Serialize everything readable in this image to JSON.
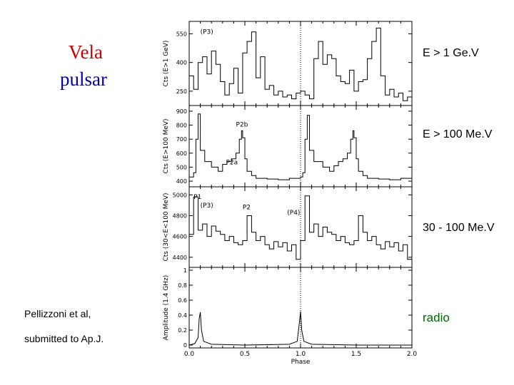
{
  "slide": {
    "title_line1": "Vela",
    "title_line2": "pulsar",
    "bands": {
      "p1": "E > 1 Ge.V",
      "p2": "E > 100 Me.V",
      "p3": "30 - 100 Me.V",
      "p4": "radio"
    },
    "citation_line1": "Pellizzoni et al,",
    "citation_line2": "submitted to Ap.J.",
    "colors": {
      "title_red": "#cc0000",
      "title_blue": "#0000aa",
      "radio_green": "#006600"
    }
  },
  "chart_data": [
    {
      "type": "line",
      "ylabel": "Cts (E>1 GeV)",
      "yticks": [
        250,
        400,
        550
      ],
      "ylim": [
        190,
        600
      ],
      "xlim": [
        0,
        2
      ],
      "annotations": [
        {
          "text": "(P3)",
          "x": 0.1,
          "y": 550
        }
      ],
      "series": [
        {
          "x": [
            0,
            0.04,
            0.08,
            0.12,
            0.16,
            0.2,
            0.24,
            0.28,
            0.32,
            0.36,
            0.4,
            0.44,
            0.48,
            0.52,
            0.56,
            0.6,
            0.64,
            0.68,
            0.72,
            0.76,
            0.8,
            0.84,
            0.88,
            0.92,
            0.96,
            1.0,
            1.04,
            1.08,
            1.12,
            1.16,
            1.2,
            1.24,
            1.28,
            1.32,
            1.36,
            1.4,
            1.44,
            1.48,
            1.52,
            1.56,
            1.6,
            1.64,
            1.68,
            1.72,
            1.76,
            1.8,
            1.84,
            1.88,
            1.92,
            1.96
          ],
          "values": [
            330,
            260,
            400,
            430,
            340,
            460,
            390,
            300,
            230,
            290,
            370,
            240,
            450,
            510,
            560,
            320,
            430,
            260,
            280,
            230,
            250,
            220,
            230,
            210,
            240,
            250,
            230,
            210,
            420,
            510,
            390,
            440,
            420,
            330,
            300,
            290,
            360,
            250,
            300,
            310,
            420,
            510,
            580,
            330,
            230,
            260,
            220,
            240,
            200,
            220
          ]
        }
      ]
    },
    {
      "type": "line",
      "ylabel": "Cts (E>100 MeV)",
      "yticks": [
        400,
        500,
        600,
        700,
        800,
        900
      ],
      "ylim": [
        380,
        920
      ],
      "xlim": [
        0,
        2
      ],
      "annotations": [
        {
          "text": "P2b",
          "x": 0.42,
          "y": 790
        },
        {
          "text": "P2a",
          "x": 0.33,
          "y": 520
        }
      ],
      "series": [
        {
          "x": [
            0,
            0.04,
            0.06,
            0.08,
            0.1,
            0.14,
            0.2,
            0.26,
            0.3,
            0.34,
            0.38,
            0.42,
            0.45,
            0.47,
            0.48,
            0.5,
            0.52,
            0.56,
            0.6,
            0.7,
            0.8,
            0.9,
            1.0,
            1.02,
            1.04,
            1.06,
            1.08,
            1.12,
            1.2,
            1.26,
            1.3,
            1.34,
            1.38,
            1.42,
            1.45,
            1.47,
            1.48,
            1.5,
            1.52,
            1.56,
            1.6,
            1.7,
            1.8,
            1.9,
            2.0
          ],
          "values": [
            430,
            460,
            700,
            880,
            620,
            540,
            500,
            470,
            520,
            540,
            560,
            600,
            700,
            760,
            710,
            560,
            470,
            440,
            420,
            415,
            410,
            420,
            430,
            460,
            700,
            870,
            620,
            540,
            500,
            470,
            510,
            540,
            560,
            600,
            700,
            760,
            710,
            560,
            470,
            440,
            420,
            415,
            410,
            420,
            420
          ]
        }
      ]
    },
    {
      "type": "line",
      "ylabel": "Cts (30<E<100 MeV)",
      "yticks": [
        4400,
        4600,
        4800,
        5000
      ],
      "ylim": [
        4330,
        5050
      ],
      "xlim": [
        0,
        2
      ],
      "annotations": [
        {
          "text": "P1",
          "x": 0.04,
          "y": 4960
        },
        {
          "text": "(P3)",
          "x": 0.1,
          "y": 4880
        },
        {
          "text": "P2",
          "x": 0.48,
          "y": 4860
        },
        {
          "text": "(P4)",
          "x": 0.88,
          "y": 4810
        }
      ],
      "series": [
        {
          "x": [
            0,
            0.04,
            0.08,
            0.12,
            0.16,
            0.2,
            0.24,
            0.28,
            0.32,
            0.36,
            0.4,
            0.44,
            0.48,
            0.52,
            0.56,
            0.6,
            0.64,
            0.68,
            0.72,
            0.76,
            0.8,
            0.84,
            0.88,
            0.92,
            0.96,
            1.0,
            1.04,
            1.08,
            1.12,
            1.16,
            1.2,
            1.24,
            1.28,
            1.32,
            1.36,
            1.4,
            1.44,
            1.48,
            1.52,
            1.56,
            1.6,
            1.64,
            1.68,
            1.72,
            1.76,
            1.8,
            1.84,
            1.88,
            1.92,
            1.96
          ],
          "values": [
            4620,
            4980,
            4660,
            4720,
            4600,
            4700,
            4650,
            4620,
            4560,
            4600,
            4540,
            4520,
            4560,
            4800,
            4640,
            4560,
            4600,
            4520,
            4480,
            4550,
            4500,
            4540,
            4460,
            4520,
            4380,
            4560,
            4990,
            4640,
            4720,
            4600,
            4690,
            4640,
            4620,
            4560,
            4600,
            4540,
            4520,
            4560,
            4800,
            4640,
            4560,
            4600,
            4520,
            4480,
            4550,
            4500,
            4540,
            4460,
            4520,
            4380
          ]
        }
      ]
    },
    {
      "type": "line",
      "ylabel": "Amplitude (1.4 GHz)",
      "yticks": [
        0,
        0.2,
        0.4,
        0.6,
        0.8,
        1
      ],
      "yticklabels": [
        "0",
        "0.2",
        "0.4",
        "0.6",
        "0.8",
        "1"
      ],
      "ylim": [
        0,
        1
      ],
      "xlim": [
        0,
        2
      ],
      "xlabel": "Phase",
      "xticks": [
        0,
        0.5,
        1,
        1.5,
        2
      ],
      "xticklabels": [
        "0.0",
        "0.5",
        "1.0",
        "1.5",
        "2.0"
      ],
      "series": [
        {
          "x": [
            0,
            0.05,
            0.08,
            0.09,
            0.1,
            0.11,
            0.13,
            0.2,
            0.5,
            0.9,
            0.97,
            0.99,
            1.0,
            1.01,
            1.03,
            1.1,
            1.5,
            1.9,
            2.0
          ],
          "values": [
            0,
            0.02,
            0.1,
            0.35,
            0.44,
            0.2,
            0.05,
            0.01,
            0,
            0.01,
            0.05,
            0.3,
            0.45,
            0.2,
            0.05,
            0.01,
            0,
            0,
            0
          ]
        }
      ]
    }
  ]
}
